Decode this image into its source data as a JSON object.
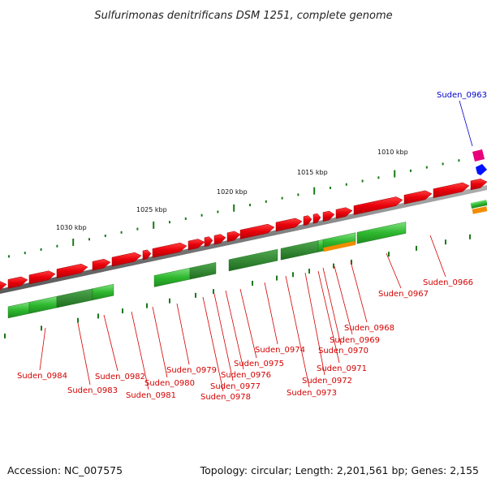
{
  "title": "Sulfurimonas denitrificans DSM 1251, complete genome",
  "footer": {
    "accession": "Accession: NC_007575",
    "summary": "Topology: circular; Length: 2,201,561 bp; Genes: 2,155"
  },
  "ruler_labels": [
    "1010 kbp",
    "1015 kbp",
    "1020 kbp",
    "1025 kbp",
    "1030 kbp"
  ],
  "colors": {
    "cds_forward": "#e8000a",
    "rna_green": "#2eb82e",
    "backbone": "#808080",
    "ticks": "#1a7a1a",
    "label_red": "#d40000",
    "label_blue": "#0000cc",
    "accent_magenta": "#e8007a",
    "accent_orange": "#f28c00",
    "accent_blue": "#0011ff"
  },
  "gene_labels": [
    {
      "text": "Suden_0963",
      "color": "blue"
    },
    {
      "text": "Suden_0966",
      "color": "red"
    },
    {
      "text": "Suden_0967",
      "color": "red"
    },
    {
      "text": "Suden_0968",
      "color": "red"
    },
    {
      "text": "Suden_0969",
      "color": "red"
    },
    {
      "text": "Suden_0970",
      "color": "red"
    },
    {
      "text": "Suden_0971",
      "color": "red"
    },
    {
      "text": "Suden_0972",
      "color": "red"
    },
    {
      "text": "Suden_0973",
      "color": "red"
    },
    {
      "text": "Suden_0974",
      "color": "red"
    },
    {
      "text": "Suden_0975",
      "color": "red"
    },
    {
      "text": "Suden_0976",
      "color": "red"
    },
    {
      "text": "Suden_0977",
      "color": "red"
    },
    {
      "text": "Suden_0978",
      "color": "red"
    },
    {
      "text": "Suden_0979",
      "color": "red"
    },
    {
      "text": "Suden_0980",
      "color": "red"
    },
    {
      "text": "Suden_0981",
      "color": "red"
    },
    {
      "text": "Suden_0982",
      "color": "red"
    },
    {
      "text": "Suden_0983",
      "color": "red"
    },
    {
      "text": "Suden_0984",
      "color": "red"
    }
  ]
}
